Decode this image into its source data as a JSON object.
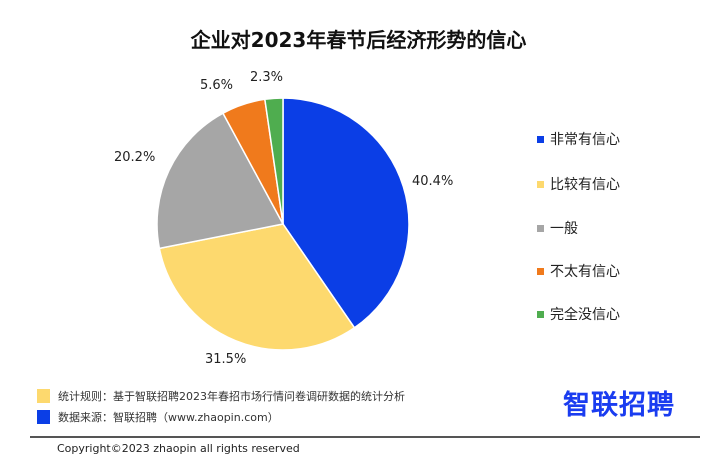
{
  "chart_data": {
    "type": "pie",
    "title": "企业对2023年春节后经济形势的信心",
    "categories": [
      "非常有信心",
      "比较有信心",
      "一般",
      "不太有信心",
      "完全没信心"
    ],
    "values": [
      40.4,
      31.5,
      20.2,
      5.6,
      2.3
    ],
    "labels": [
      "40.4%",
      "31.5%",
      "20.2%",
      "5.6%",
      "2.3%"
    ],
    "colors": [
      "#0b3ee6",
      "#fdd96e",
      "#a6a6a6",
      "#f07a1c",
      "#4fad4f"
    ],
    "legend_position": "right"
  },
  "footer": {
    "rule_note": "统计规则：基于智联招聘2023年春招市场行情问卷调研数据的统计分析",
    "source_note": "数据来源：智联招聘（www.zhaopin.com）",
    "rule_color": "#fdd96e",
    "source_color": "#0b3ee6",
    "logo": "智联招聘",
    "copyright": "Copyright©2023 zhaopin all rights reserved"
  }
}
